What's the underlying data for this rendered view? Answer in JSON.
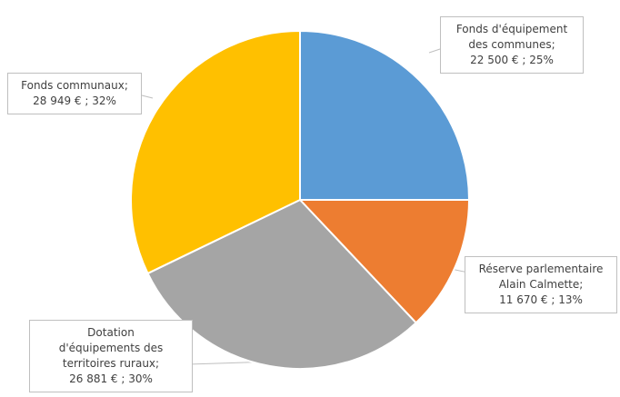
{
  "chart_data": {
    "type": "pie",
    "start_angle": "12 o'clock",
    "direction": "clockwise",
    "slices": [
      {
        "label": "Fonds d'équipement des communes",
        "value": 22500,
        "percent": 25,
        "color": "#5b9bd5",
        "callout": [
          "Fonds d'équipement",
          "des communes;",
          "22 500 € ; 25%"
        ]
      },
      {
        "label": "Réserve parlementaire Alain Calmette",
        "value": 11670,
        "percent": 13,
        "color": "#ed7d31",
        "callout": [
          "Réserve parlementaire",
          "Alain Calmette;",
          "11 670 € ; 13%"
        ]
      },
      {
        "label": "Dotation d'équipements des territoires ruraux",
        "value": 26881,
        "percent": 30,
        "color": "#a5a5a5",
        "callout": [
          "Dotation",
          "d'équipements des",
          "territoires ruraux;",
          "26 881 € ; 30%"
        ]
      },
      {
        "label": "Fonds communaux",
        "value": 28949,
        "percent": 32,
        "color": "#ffc000",
        "callout": [
          "Fonds communaux;",
          "28 949 € ; 32%"
        ]
      }
    ]
  }
}
